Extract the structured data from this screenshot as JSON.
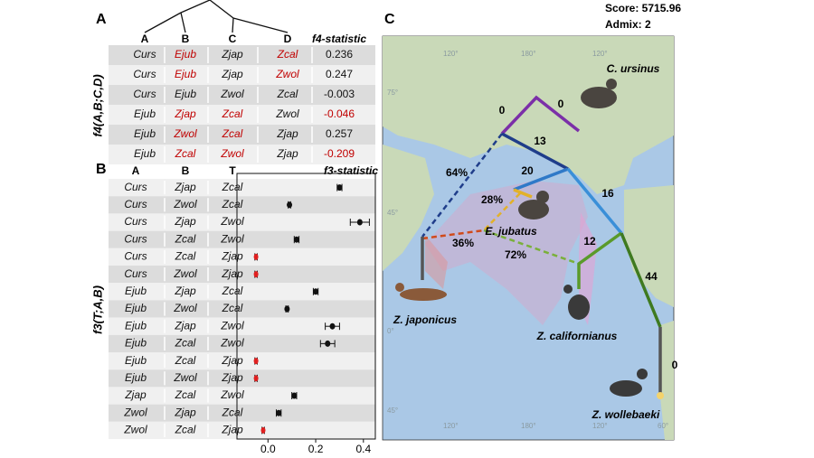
{
  "panel_labels": [
    "A",
    "B",
    "C"
  ],
  "table_a": {
    "columns": [
      "A",
      "B",
      "C",
      "D",
      "f4-statistic"
    ],
    "y_label": "f4(A,B;C,D)",
    "highlight_color": "#c00000",
    "rows": [
      {
        "cells": [
          "Curs",
          "Ejub",
          "Zjap",
          "Zcal",
          "0.236"
        ],
        "highlight": [
          1,
          3
        ]
      },
      {
        "cells": [
          "Curs",
          "Ejub",
          "Zjap",
          "Zwol",
          "0.247"
        ],
        "highlight": [
          1,
          3
        ]
      },
      {
        "cells": [
          "Curs",
          "Ejub",
          "Zwol",
          "Zcal",
          "-0.003"
        ],
        "highlight": []
      },
      {
        "cells": [
          "Ejub",
          "Zjap",
          "Zcal",
          "Zwol",
          "-0.046"
        ],
        "highlight": [
          1,
          2,
          4
        ]
      },
      {
        "cells": [
          "Ejub",
          "Zwol",
          "Zcal",
          "Zjap",
          "0.257"
        ],
        "highlight": [
          1,
          2
        ]
      },
      {
        "cells": [
          "Ejub",
          "Zcal",
          "Zwol",
          "Zjap",
          "-0.209"
        ],
        "highlight": [
          1,
          2,
          4
        ]
      }
    ]
  },
  "chart_data": {
    "type": "dotplot",
    "title": "f3-statistic",
    "y_label": "f3(T;A,B)",
    "columns": [
      "A",
      "B",
      "T"
    ],
    "rows": [
      [
        "Curs",
        "Zjap",
        "Zcal"
      ],
      [
        "Curs",
        "Zwol",
        "Zcal"
      ],
      [
        "Curs",
        "Zjap",
        "Zwol"
      ],
      [
        "Curs",
        "Zcal",
        "Zwol"
      ],
      [
        "Curs",
        "Zcal",
        "Zjap"
      ],
      [
        "Curs",
        "Zwol",
        "Zjap"
      ],
      [
        "Ejub",
        "Zjap",
        "Zcal"
      ],
      [
        "Ejub",
        "Zwol",
        "Zcal"
      ],
      [
        "Ejub",
        "Zjap",
        "Zwol"
      ],
      [
        "Ejub",
        "Zcal",
        "Zwol"
      ],
      [
        "Ejub",
        "Zcal",
        "Zjap"
      ],
      [
        "Ejub",
        "Zwol",
        "Zjap"
      ],
      [
        "Zjap",
        "Zcal",
        "Zwol"
      ],
      [
        "Zwol",
        "Zjap",
        "Zcal"
      ],
      [
        "Zwol",
        "Zcal",
        "Zjap"
      ]
    ],
    "values": [
      0.3,
      0.09,
      0.385,
      0.12,
      -0.05,
      -0.05,
      0.2,
      0.08,
      0.27,
      0.25,
      -0.05,
      -0.05,
      0.11,
      0.045,
      -0.02
    ],
    "errors": [
      0.01,
      0.005,
      0.04,
      0.01,
      0.005,
      0.005,
      0.01,
      0.005,
      0.03,
      0.03,
      0.005,
      0.005,
      0.01,
      0.01,
      0.005
    ],
    "colors": [
      "#111",
      "#111",
      "#111",
      "#111",
      "#e02020",
      "#e02020",
      "#111",
      "#111",
      "#111",
      "#111",
      "#e02020",
      "#e02020",
      "#111",
      "#111",
      "#e02020"
    ],
    "xlim": [
      -0.13,
      0.45
    ],
    "xticks": [
      {
        "value": 0,
        "label": "0.0"
      },
      0.2,
      0.4
    ]
  },
  "map": {
    "score": "Score: 5715.96",
    "admix": "Admix: 2",
    "grid_labels": [
      "120°",
      "180°",
      "120°",
      "75°",
      "45°",
      "0°",
      "45°",
      "120°",
      "180°",
      "120°",
      "60°"
    ],
    "species": [
      "C. ursinus",
      "E. jubatus",
      "Z. japonicus",
      "Z. californianus",
      "Z. wollebaeki"
    ],
    "edge_labels": [
      "0",
      "0",
      "13",
      "20",
      "16",
      "12",
      "44",
      "0",
      "64%",
      "28%",
      "36%",
      "72%"
    ]
  }
}
